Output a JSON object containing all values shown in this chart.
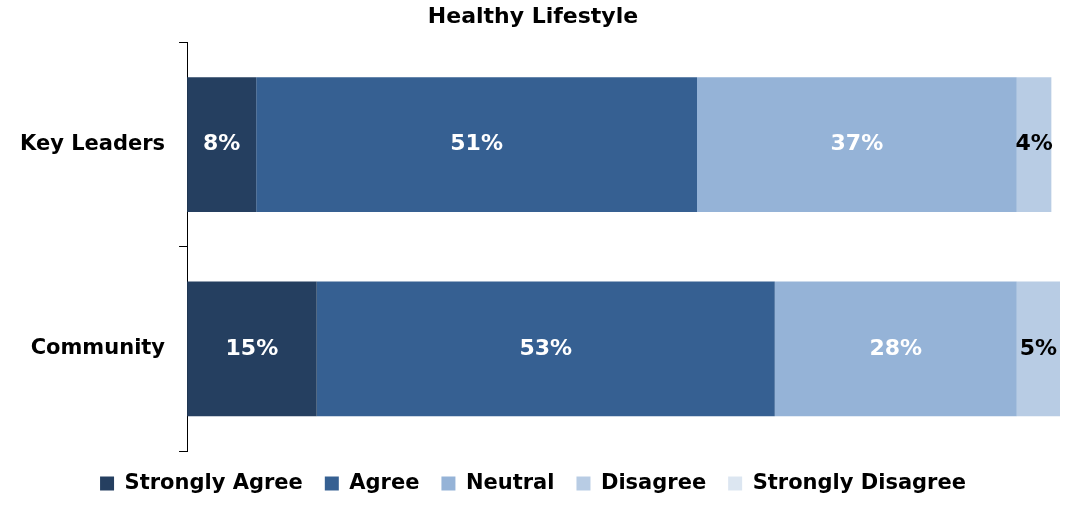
{
  "chart_data": {
    "type": "bar",
    "title": "Healthy Lifestyle",
    "orientation": "horizontal",
    "stacked": true,
    "categories": [
      "Key Leaders",
      "Community"
    ],
    "series": [
      {
        "name": "Strongly Agree",
        "color": "#253f60",
        "values": [
          8,
          15
        ],
        "value_labels": [
          "8%",
          "15%"
        ]
      },
      {
        "name": "Agree",
        "color": "#366092",
        "values": [
          51,
          53
        ],
        "value_labels": [
          "51%",
          "53%"
        ]
      },
      {
        "name": "Neutral",
        "color": "#95b3d7",
        "values": [
          37,
          28
        ],
        "value_labels": [
          "37%",
          "28%"
        ]
      },
      {
        "name": "Disagree",
        "color": "#b8cce4",
        "values": [
          4,
          5
        ],
        "value_labels": [
          "4%",
          "5%"
        ]
      },
      {
        "name": "Strongly Disagree",
        "color": "#dce6f1",
        "values": [
          null,
          null
        ]
      }
    ],
    "xlim": [
      0,
      101
    ],
    "tick_labels": "y",
    "legend": "bottom"
  }
}
